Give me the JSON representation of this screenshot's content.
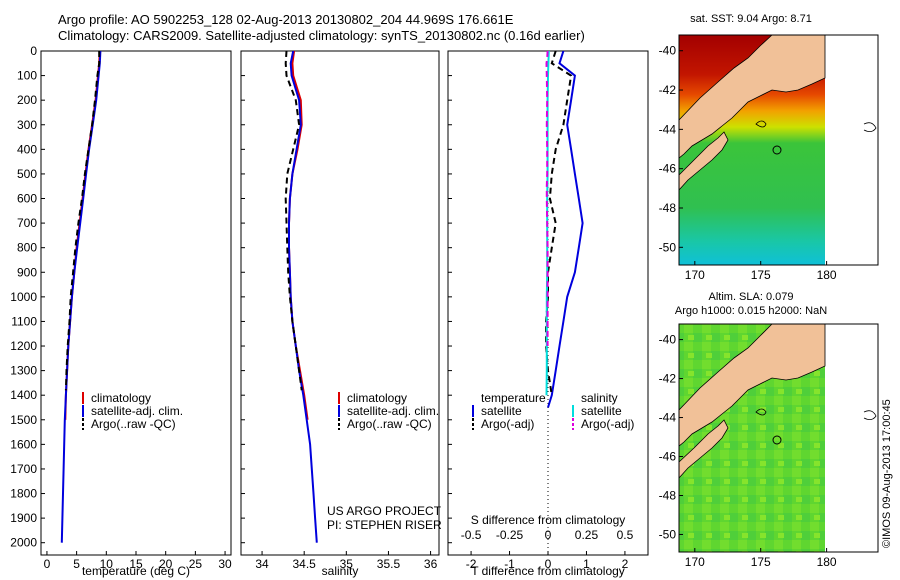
{
  "header": {
    "line1": "Argo profile: AO 5902253_128 02-Aug-2013 20130802_204 44.969S 176.661E",
    "line2": "Climatology: CARS2009. Satellite-adjusted climatology: synTS_20130802.nc (0.16d earlier)"
  },
  "chart_data": [
    {
      "type": "line",
      "panel": "temperature",
      "xlabel": "temperature (deg C)",
      "ylabel": "",
      "xlim": [
        -1,
        31
      ],
      "ylim": [
        2050,
        0
      ],
      "y_ticks": [
        0,
        100,
        200,
        300,
        400,
        500,
        600,
        700,
        800,
        900,
        1000,
        1100,
        1200,
        1300,
        1400,
        1500,
        1600,
        1700,
        1800,
        1900,
        2000
      ],
      "x_ticks": [
        0,
        5,
        10,
        15,
        20,
        25,
        30
      ],
      "legend": [
        "climatology",
        "satellite-adj. clim.",
        "Argo(..raw -QC)"
      ],
      "series": [
        {
          "name": "climatology",
          "color": "#dd0000",
          "dash": "solid",
          "points": [
            [
              8.9,
              0
            ],
            [
              8.8,
              50
            ],
            [
              8.6,
              100
            ],
            [
              8.2,
              200
            ],
            [
              7.6,
              300
            ],
            [
              7.0,
              400
            ],
            [
              6.5,
              500
            ],
            [
              6.0,
              600
            ],
            [
              5.5,
              700
            ],
            [
              5.0,
              800
            ],
            [
              4.6,
              900
            ],
            [
              4.2,
              1000
            ],
            [
              3.9,
              1100
            ],
            [
              3.6,
              1200
            ],
            [
              3.4,
              1300
            ],
            [
              3.2,
              1400
            ],
            [
              3.1,
              1500
            ]
          ]
        },
        {
          "name": "satellite-adj. clim.",
          "color": "#0000dd",
          "dash": "solid",
          "points": [
            [
              9.0,
              0
            ],
            [
              8.9,
              50
            ],
            [
              8.7,
              100
            ],
            [
              8.3,
              200
            ],
            [
              7.7,
              300
            ],
            [
              7.1,
              400
            ],
            [
              6.6,
              500
            ],
            [
              6.1,
              600
            ],
            [
              5.6,
              700
            ],
            [
              5.1,
              800
            ],
            [
              4.6,
              900
            ],
            [
              4.2,
              1000
            ],
            [
              3.9,
              1100
            ],
            [
              3.6,
              1200
            ],
            [
              3.4,
              1300
            ],
            [
              3.2,
              1400
            ],
            [
              3.0,
              1500
            ],
            [
              2.9,
              1600
            ],
            [
              2.8,
              1700
            ],
            [
              2.7,
              1800
            ],
            [
              2.6,
              1900
            ],
            [
              2.5,
              2000
            ]
          ]
        },
        {
          "name": "Argo(..raw -QC)",
          "color": "#000000",
          "dash": "dashed",
          "points": [
            [
              8.8,
              0
            ],
            [
              8.8,
              50
            ],
            [
              8.5,
              100
            ],
            [
              8.1,
              200
            ],
            [
              7.6,
              300
            ],
            [
              7.0,
              400
            ],
            [
              6.4,
              500
            ],
            [
              5.9,
              600
            ],
            [
              5.3,
              700
            ],
            [
              4.8,
              800
            ],
            [
              4.4,
              900
            ],
            [
              4.0,
              1000
            ],
            [
              3.8,
              1100
            ],
            [
              3.5,
              1200
            ],
            [
              3.3,
              1300
            ],
            [
              3.2,
              1380
            ]
          ]
        }
      ]
    },
    {
      "type": "line",
      "panel": "salinity",
      "xlabel": "salinity",
      "xlim": [
        33.75,
        36.1
      ],
      "ylim": [
        2050,
        0
      ],
      "x_ticks": [
        34,
        34.5,
        35,
        35.5,
        36
      ],
      "legend": [
        "climatology",
        "satellite-adj. clim.",
        "Argo(..raw -QC)"
      ],
      "annotation": [
        "US ARGO PROJECT",
        "PI: STEPHEN RISER"
      ],
      "series": [
        {
          "name": "climatology",
          "color": "#dd0000",
          "dash": "solid",
          "points": [
            [
              34.38,
              0
            ],
            [
              34.36,
              50
            ],
            [
              34.37,
              100
            ],
            [
              34.46,
              200
            ],
            [
              34.47,
              300
            ],
            [
              34.42,
              400
            ],
            [
              34.36,
              500
            ],
            [
              34.33,
              600
            ],
            [
              34.32,
              700
            ],
            [
              34.32,
              800
            ],
            [
              34.33,
              900
            ],
            [
              34.34,
              1000
            ],
            [
              34.36,
              1100
            ],
            [
              34.4,
              1200
            ],
            [
              34.45,
              1300
            ],
            [
              34.5,
              1400
            ],
            [
              34.54,
              1500
            ]
          ]
        },
        {
          "name": "satellite-adj. clim.",
          "color": "#0000dd",
          "dash": "solid",
          "points": [
            [
              34.37,
              0
            ],
            [
              34.34,
              50
            ],
            [
              34.35,
              100
            ],
            [
              34.44,
              200
            ],
            [
              34.46,
              300
            ],
            [
              34.41,
              400
            ],
            [
              34.36,
              500
            ],
            [
              34.33,
              600
            ],
            [
              34.32,
              700
            ],
            [
              34.32,
              800
            ],
            [
              34.33,
              900
            ],
            [
              34.34,
              1000
            ],
            [
              34.36,
              1100
            ],
            [
              34.4,
              1200
            ],
            [
              34.44,
              1300
            ],
            [
              34.49,
              1400
            ],
            [
              34.53,
              1500
            ],
            [
              34.57,
              1600
            ],
            [
              34.59,
              1700
            ],
            [
              34.61,
              1800
            ],
            [
              34.63,
              1900
            ],
            [
              34.65,
              2000
            ]
          ]
        },
        {
          "name": "Argo(..raw -QC)",
          "color": "#000000",
          "dash": "dashed",
          "points": [
            [
              34.29,
              0
            ],
            [
              34.28,
              50
            ],
            [
              34.29,
              100
            ],
            [
              34.4,
              200
            ],
            [
              34.44,
              300
            ],
            [
              34.37,
              400
            ],
            [
              34.3,
              500
            ],
            [
              34.28,
              600
            ],
            [
              34.29,
              700
            ],
            [
              34.3,
              800
            ],
            [
              34.31,
              900
            ],
            [
              34.33,
              1000
            ],
            [
              34.36,
              1100
            ],
            [
              34.4,
              1200
            ],
            [
              34.44,
              1300
            ],
            [
              34.47,
              1380
            ]
          ]
        }
      ]
    },
    {
      "type": "line",
      "panel": "difference",
      "xlabel": "T difference from climatology",
      "xlabel_top": "S difference from climatology",
      "xlim": [
        -2.6,
        2.6
      ],
      "ylim": [
        2050,
        0
      ],
      "x_ticks": [
        -2,
        -1,
        0,
        1,
        2
      ],
      "s_ticks": [
        "-0.5",
        "-0.25",
        "0",
        "0.25",
        "0.5"
      ],
      "legend_groups": [
        "temperature",
        "salinity"
      ],
      "legend": [
        "satellite",
        "Argo(-adj)",
        "satellite",
        "Argo(-adj)"
      ],
      "series": [
        {
          "name": "temperature satellite",
          "color": "#0000dd",
          "dash": "solid",
          "points": [
            [
              0.4,
              0
            ],
            [
              0.3,
              50
            ],
            [
              0.7,
              100
            ],
            [
              0.6,
              200
            ],
            [
              0.5,
              300
            ],
            [
              0.6,
              400
            ],
            [
              0.7,
              500
            ],
            [
              0.8,
              600
            ],
            [
              0.9,
              700
            ],
            [
              0.8,
              800
            ],
            [
              0.7,
              900
            ],
            [
              0.5,
              1000
            ],
            [
              0.4,
              1100
            ],
            [
              0.3,
              1200
            ],
            [
              0.2,
              1300
            ],
            [
              0.1,
              1400
            ],
            [
              0.0,
              1450
            ]
          ]
        },
        {
          "name": "temperature Argo(-adj)",
          "color": "#000000",
          "dash": "dashed",
          "points": [
            [
              0.2,
              0
            ],
            [
              0.1,
              50
            ],
            [
              0.6,
              100
            ],
            [
              0.5,
              200
            ],
            [
              0.4,
              300
            ],
            [
              0.2,
              400
            ],
            [
              0.1,
              500
            ],
            [
              0.05,
              600
            ],
            [
              0.2,
              700
            ],
            [
              0.1,
              800
            ],
            [
              0.0,
              900
            ],
            [
              0.0,
              1000
            ],
            [
              -0.05,
              1100
            ],
            [
              -0.05,
              1200
            ],
            [
              0.0,
              1300
            ],
            [
              0.1,
              1400
            ]
          ]
        },
        {
          "name": "salinity satellite",
          "color": "#00dddd",
          "dash": "solid",
          "points": [
            [
              0.02,
              0
            ],
            [
              0.01,
              50
            ],
            [
              0.0,
              100
            ],
            [
              -0.01,
              200
            ],
            [
              -0.01,
              300
            ],
            [
              -0.01,
              400
            ],
            [
              -0.01,
              500
            ],
            [
              -0.02,
              600
            ],
            [
              -0.02,
              700
            ],
            [
              -0.02,
              800
            ],
            [
              -0.02,
              900
            ],
            [
              -0.03,
              1000
            ],
            [
              -0.03,
              1100
            ],
            [
              -0.03,
              1200
            ],
            [
              -0.03,
              1300
            ],
            [
              -0.04,
              1400
            ]
          ]
        },
        {
          "name": "salinity Argo(-adj)",
          "color": "#dd00dd",
          "dash": "dashed",
          "points": [
            [
              -0.01,
              0
            ],
            [
              -0.02,
              30
            ],
            [
              -0.04,
              50
            ],
            [
              -0.03,
              100
            ],
            [
              -0.02,
              200
            ],
            [
              -0.03,
              300
            ],
            [
              -0.02,
              400
            ],
            [
              -0.02,
              500
            ],
            [
              -0.03,
              550
            ],
            [
              -0.03,
              600
            ],
            [
              -0.02,
              700
            ],
            [
              -0.01,
              800
            ],
            [
              -0.01,
              900
            ],
            [
              -0.01,
              1000
            ],
            [
              -0.01,
              1100
            ],
            [
              -0.01,
              1200
            ]
          ]
        }
      ]
    }
  ],
  "maps": [
    {
      "title": "sat. SST: 9.04  Argo: 8.71",
      "lon_ticks": [
        170,
        175,
        180
      ],
      "lat_ticks": [
        -40,
        -42,
        -44,
        -46,
        -48,
        -50
      ]
    },
    {
      "title_line1": "Altim. SLA: 0.079",
      "title_line2": "Argo h1000: 0.015 h2000: NaN",
      "lon_ticks": [
        170,
        175,
        180
      ],
      "lat_ticks": [
        -40,
        -42,
        -44,
        -46,
        -48,
        -50
      ]
    }
  ],
  "footer": "©IMOS 09-Aug-2013 17:00:45"
}
